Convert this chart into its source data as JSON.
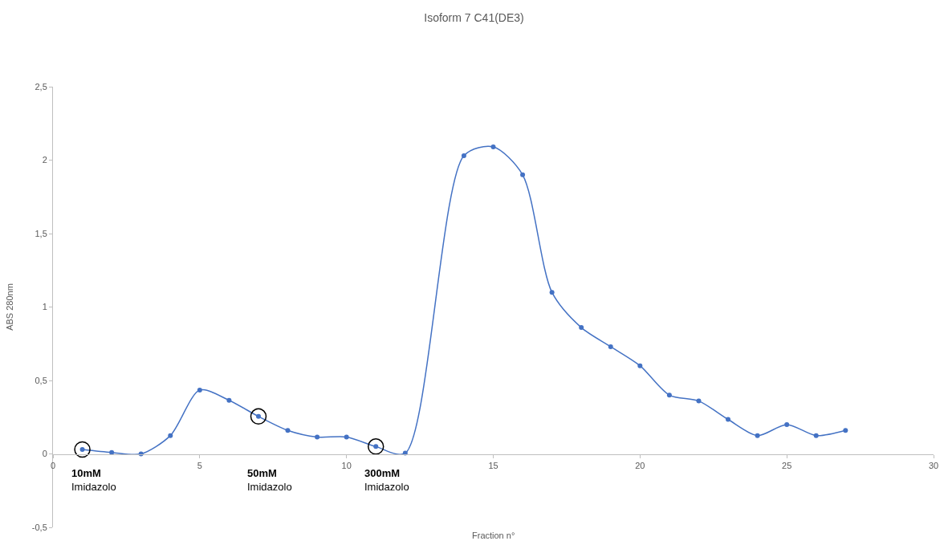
{
  "chart_data": {
    "type": "line",
    "title": "Isoform 7 C41(DE3)",
    "xlabel": "Fraction n°",
    "ylabel": "ABS 280nm",
    "x": [
      1,
      2,
      3,
      4,
      5,
      6,
      7,
      8,
      9,
      10,
      11,
      12,
      14,
      15,
      16,
      17,
      18,
      19,
      20,
      21,
      22,
      23,
      24,
      25,
      26,
      27
    ],
    "series": [
      {
        "color": "#4472c4",
        "values": [
          0.03,
          0.01,
          0.0,
          0.125,
          0.435,
          0.365,
          0.255,
          0.16,
          0.115,
          0.115,
          0.05,
          0.005,
          2.03,
          2.09,
          1.9,
          1.1,
          0.86,
          0.73,
          0.6,
          0.4,
          0.36,
          0.235,
          0.125,
          0.2,
          0.125,
          0.16
        ]
      },
      {
        "type": "scatter",
        "color": "#000000",
        "x": [
          1,
          7,
          11
        ],
        "values": [
          0.03,
          0.255,
          0.05
        ]
      }
    ],
    "xlim": [
      0,
      30
    ],
    "xticks": [
      0,
      5,
      10,
      15,
      20,
      25,
      30
    ],
    "ylim": [
      -0.5,
      2.5
    ],
    "yticks": [
      {
        "value": -0.5,
        "label": "-0,5"
      },
      0,
      {
        "value": 0.5,
        "label": "0,5"
      },
      1,
      {
        "value": 1.5,
        "label": "1,5"
      },
      2,
      {
        "value": 2.5,
        "label": "2,5"
      }
    ],
    "annotations": [
      "10mM\nImidazolo",
      "50mM\nImidazolo",
      "300mM\nImidazolo"
    ],
    "marker": "circle",
    "line_style": "solid",
    "grid": false
  }
}
